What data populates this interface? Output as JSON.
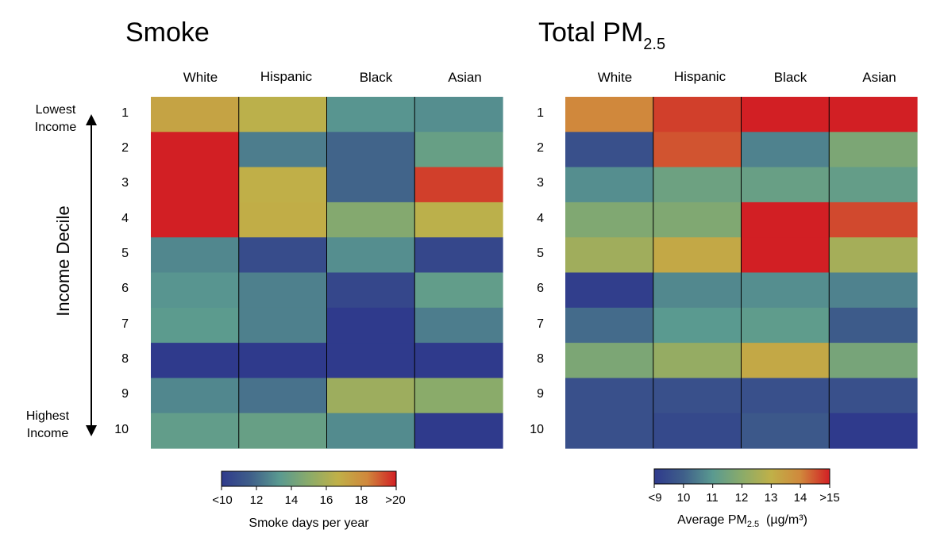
{
  "left_panel": {
    "title": "Smoke",
    "colorbar_title": "Smoke days per year",
    "colorbar_ticks": [
      "<10",
      "12",
      "14",
      "16",
      "18",
      ">20"
    ]
  },
  "right_panel": {
    "title_main": "Total PM",
    "title_sub": "2.5",
    "colorbar_title_main": "Average PM",
    "colorbar_title_sub": "2.5",
    "colorbar_title_unit": "(µg/m³)",
    "colorbar_ticks": [
      "<9",
      "10",
      "11",
      "12",
      "13",
      "14",
      ">15"
    ]
  },
  "y_axis": {
    "title": "Income Decile",
    "top_label_line1": "Lowest",
    "top_label_line2": "Income",
    "bottom_label_line1": "Highest",
    "bottom_label_line2": "Income"
  },
  "columns": [
    "White",
    "Hispanic",
    "Black",
    "Asian"
  ],
  "rows": [
    "1",
    "2",
    "3",
    "4",
    "5",
    "6",
    "7",
    "8",
    "9",
    "10"
  ],
  "colormap": [
    "#2f3a8c",
    "#3f5f8a",
    "#5a9a90",
    "#8aab6a",
    "#c0b048",
    "#d0883c",
    "#d21f24"
  ],
  "chart_data": [
    {
      "type": "heatmap",
      "title": "Smoke",
      "x_categories": [
        "White",
        "Hispanic",
        "Black",
        "Asian"
      ],
      "y_categories": [
        "1",
        "2",
        "3",
        "4",
        "5",
        "6",
        "7",
        "8",
        "9",
        "10"
      ],
      "ylabel": "Income Decile",
      "colorbar_label": "Smoke days per year",
      "color_range": [
        10,
        20
      ],
      "values": [
        [
          17.2,
          16.5,
          13.2,
          13.0
        ],
        [
          20.0,
          12.5,
          11.8,
          13.8
        ],
        [
          20.0,
          16.7,
          11.8,
          19.5
        ],
        [
          20.0,
          16.8,
          14.8,
          16.5
        ],
        [
          12.8,
          10.8,
          13.0,
          10.6
        ],
        [
          13.2,
          12.6,
          10.6,
          13.6
        ],
        [
          13.4,
          12.6,
          10.0,
          12.5
        ],
        [
          10.0,
          10.0,
          10.0,
          10.0
        ],
        [
          12.8,
          12.2,
          15.6,
          15.0
        ],
        [
          13.6,
          13.8,
          12.9,
          10.0
        ]
      ]
    },
    {
      "type": "heatmap",
      "title": "Total PM2.5",
      "x_categories": [
        "White",
        "Hispanic",
        "Black",
        "Asian"
      ],
      "y_categories": [
        "1",
        "2",
        "3",
        "4",
        "5",
        "6",
        "7",
        "8",
        "9",
        "10"
      ],
      "colorbar_label": "Average PM2.5 (µg/m³)",
      "color_range": [
        9,
        15
      ],
      "values": [
        [
          14.0,
          14.7,
          15.0,
          15.0
        ],
        [
          9.6,
          14.5,
          10.6,
          11.7
        ],
        [
          10.8,
          11.4,
          11.3,
          11.2
        ],
        [
          11.8,
          11.8,
          15.0,
          14.6
        ],
        [
          12.4,
          13.2,
          15.0,
          12.5
        ],
        [
          9.1,
          10.7,
          10.8,
          10.6
        ],
        [
          10.2,
          11.0,
          11.1,
          9.9
        ],
        [
          11.7,
          12.2,
          13.2,
          11.6
        ],
        [
          9.6,
          9.6,
          9.6,
          9.6
        ],
        [
          9.6,
          9.4,
          9.8,
          9.0
        ]
      ]
    }
  ]
}
